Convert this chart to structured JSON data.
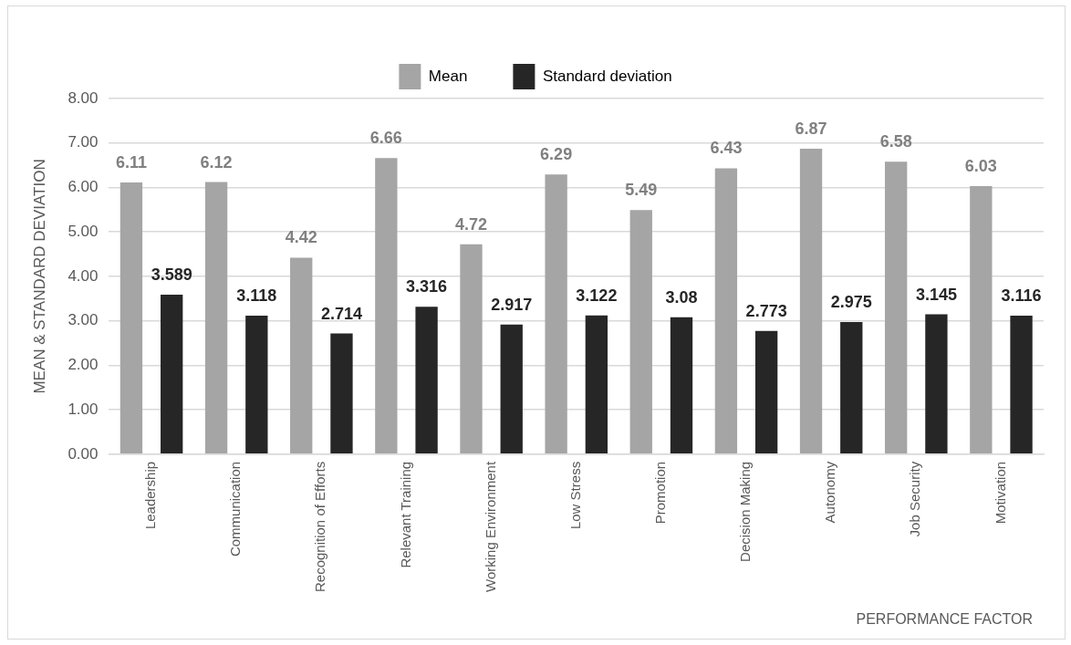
{
  "chart_data": {
    "type": "bar",
    "xlabel": "PERFORMANCE FACTOR",
    "ylabel": "MEAN & STANDARD DEVIATION",
    "categories": [
      "Leadership",
      "Communication",
      "Recognition of Efforts",
      "Relevant Training",
      "Working Environment",
      "Low Stress",
      "Promotion",
      "Decision Making",
      "Autonomy",
      "Job Security",
      "Motivation"
    ],
    "series": [
      {
        "name": "Mean",
        "color": "#a5a5a5",
        "values": [
          6.11,
          6.12,
          4.42,
          6.66,
          4.72,
          6.29,
          5.49,
          6.43,
          6.87,
          6.58,
          6.03
        ]
      },
      {
        "name": "Standard deviation",
        "color": "#262626",
        "values": [
          3.589,
          3.118,
          2.714,
          3.316,
          2.917,
          3.122,
          3.08,
          2.773,
          2.975,
          3.145,
          3.116
        ]
      }
    ],
    "ylim": [
      0,
      8
    ],
    "yticks": [
      {
        "value": 0,
        "label": "0.00"
      },
      {
        "value": 1,
        "label": "1.00"
      },
      {
        "value": 2,
        "label": "2.00"
      },
      {
        "value": 3,
        "label": "3.00"
      },
      {
        "value": 4,
        "label": "4.00"
      },
      {
        "value": 5,
        "label": "5.00"
      },
      {
        "value": 6,
        "label": "6.00"
      },
      {
        "value": 7,
        "label": "7.00"
      },
      {
        "value": 8,
        "label": "8.00"
      }
    ],
    "grid": "y",
    "legend": "top",
    "data_labels": true
  }
}
